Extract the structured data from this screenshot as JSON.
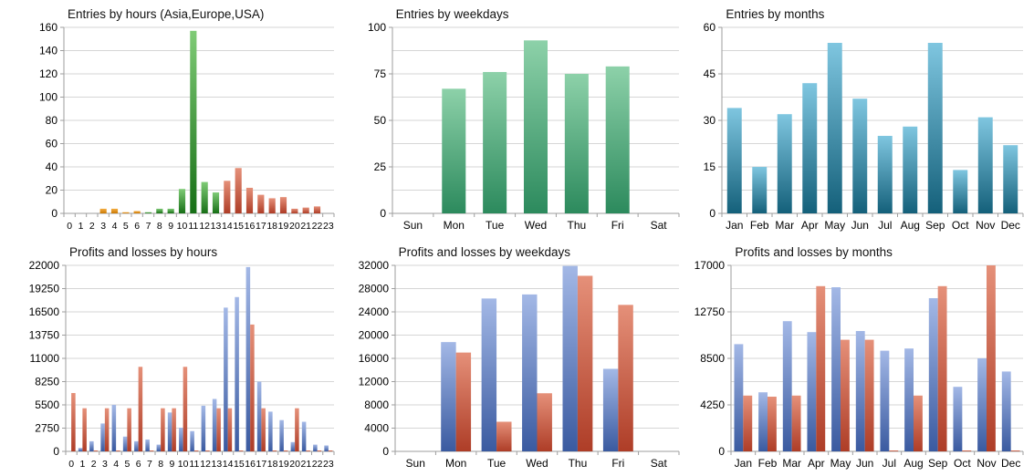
{
  "page": {
    "background": "#ffffff",
    "grid_color": "#d6d6d6",
    "axis_color": "#9e9e9e"
  },
  "colors": {
    "orange": {
      "top": "#f5ad42",
      "bottom": "#c97803"
    },
    "green_hours": {
      "top": "#7fcb76",
      "bottom": "#176f16"
    },
    "green": {
      "top": "#8dd1a9",
      "bottom": "#2c8a5d"
    },
    "teal": {
      "top": "#7fc6e0",
      "bottom": "#14607a"
    },
    "blue": {
      "top": "#a3b8e6",
      "bottom": "#3a5aa0"
    },
    "red": {
      "top": "#e59079",
      "bottom": "#ae3d27"
    }
  },
  "chart_data": [
    {
      "id": "entries-by-hours",
      "type": "bar",
      "title": "Entries by hours (Asia,Europe,USA)",
      "categories": [
        "0",
        "1",
        "2",
        "3",
        "4",
        "5",
        "6",
        "7",
        "8",
        "9",
        "10",
        "11",
        "12",
        "13",
        "14",
        "15",
        "16",
        "17",
        "18",
        "19",
        "20",
        "21",
        "22",
        "23"
      ],
      "values": [
        0,
        0,
        0,
        4,
        4,
        1,
        2,
        1,
        4,
        4,
        21,
        157,
        27,
        18,
        28,
        39,
        22,
        16,
        13,
        14,
        4,
        5,
        6,
        0
      ],
      "bar_colors": [
        "orange",
        "orange",
        "orange",
        "orange",
        "orange",
        "orange",
        "orange",
        "green_hours",
        "green_hours",
        "green_hours",
        "green_hours",
        "green_hours",
        "green_hours",
        "green_hours",
        "red",
        "red",
        "red",
        "red",
        "red",
        "red",
        "red",
        "red",
        "red",
        "red"
      ],
      "ylim": [
        0,
        160
      ],
      "yticks": [
        0,
        20,
        40,
        60,
        80,
        100,
        120,
        140,
        160
      ],
      "minor_grid": false,
      "grid": true,
      "legend": "none"
    },
    {
      "id": "entries-by-weekdays",
      "type": "bar",
      "title": "Entries by weekdays",
      "categories": [
        "Sun",
        "Mon",
        "Tue",
        "Wed",
        "Thu",
        "Fri",
        "Sat"
      ],
      "values": [
        0,
        67,
        76,
        93,
        75,
        79,
        0
      ],
      "color": "green",
      "ylim": [
        0,
        100
      ],
      "yticks": [
        0,
        25,
        50,
        75,
        100
      ],
      "minor_grid": true,
      "grid": true,
      "legend": "none"
    },
    {
      "id": "entries-by-months",
      "type": "bar",
      "title": "Entries by months",
      "categories": [
        "Jan",
        "Feb",
        "Mar",
        "Apr",
        "May",
        "Jun",
        "Jul",
        "Aug",
        "Sep",
        "Oct",
        "Nov",
        "Dec"
      ],
      "values": [
        34,
        15,
        32,
        42,
        55,
        37,
        25,
        28,
        55,
        14,
        31,
        22
      ],
      "color": "teal",
      "ylim": [
        0,
        60
      ],
      "yticks": [
        0,
        15,
        30,
        45,
        60
      ],
      "minor_grid": true,
      "grid": true,
      "legend": "none"
    },
    {
      "id": "profits-losses-by-hours",
      "type": "grouped-bar",
      "title": "Profits and losses by hours",
      "categories": [
        "0",
        "1",
        "2",
        "3",
        "4",
        "5",
        "6",
        "7",
        "8",
        "9",
        "10",
        "11",
        "12",
        "13",
        "14",
        "15",
        "16",
        "17",
        "18",
        "19",
        "20",
        "21",
        "22",
        "23"
      ],
      "series": [
        {
          "name": "profits",
          "color": "blue",
          "values": [
            0,
            400,
            1200,
            3300,
            5500,
            1750,
            1200,
            1400,
            800,
            4600,
            2800,
            2400,
            5400,
            6200,
            17000,
            18250,
            21800,
            8250,
            4700,
            3700,
            1100,
            3500,
            800,
            700
          ]
        },
        {
          "name": "losses",
          "color": "red",
          "values": [
            6900,
            5100,
            50,
            5100,
            50,
            5100,
            10000,
            50,
            5100,
            5100,
            10000,
            50,
            50,
            5100,
            5100,
            50,
            15000,
            5100,
            50,
            50,
            5100,
            50,
            50,
            50
          ]
        }
      ],
      "ylim": [
        0,
        22000
      ],
      "yticks": [
        0,
        2750,
        5500,
        8250,
        11000,
        13750,
        16500,
        19250,
        22000
      ],
      "minor_grid": false,
      "grid": true,
      "legend": "none"
    },
    {
      "id": "profits-losses-by-weekdays",
      "type": "grouped-bar",
      "title": "Profits and losses by weekdays",
      "categories": [
        "Sun",
        "Mon",
        "Tue",
        "Wed",
        "Thu",
        "Fri",
        "Sat"
      ],
      "series": [
        {
          "name": "profits",
          "color": "blue",
          "values": [
            0,
            18800,
            26300,
            27000,
            31900,
            14200,
            0
          ]
        },
        {
          "name": "losses",
          "color": "red",
          "values": [
            0,
            17000,
            5100,
            10000,
            30200,
            25200,
            0
          ]
        }
      ],
      "ylim": [
        0,
        32000
      ],
      "yticks": [
        0,
        4000,
        8000,
        12000,
        16000,
        20000,
        24000,
        28000,
        32000
      ],
      "minor_grid": false,
      "grid": true,
      "legend": "none"
    },
    {
      "id": "profits-losses-by-months",
      "type": "grouped-bar",
      "title": "Profits and losses by months",
      "categories": [
        "Jan",
        "Feb",
        "Mar",
        "Apr",
        "May",
        "Jun",
        "Jul",
        "Aug",
        "Sep",
        "Oct",
        "Nov",
        "Dec"
      ],
      "series": [
        {
          "name": "profits",
          "color": "blue",
          "values": [
            9800,
            5400,
            11900,
            10900,
            15000,
            11000,
            9200,
            9400,
            14000,
            5900,
            8500,
            7300
          ]
        },
        {
          "name": "losses",
          "color": "red",
          "values": [
            5100,
            5000,
            5100,
            15100,
            10200,
            10200,
            50,
            5100,
            15100,
            50,
            17000,
            50
          ]
        }
      ],
      "ylim": [
        0,
        17000
      ],
      "yticks": [
        0,
        4250,
        8500,
        12750,
        17000
      ],
      "minor_grid": true,
      "grid": true,
      "legend": "none"
    }
  ]
}
